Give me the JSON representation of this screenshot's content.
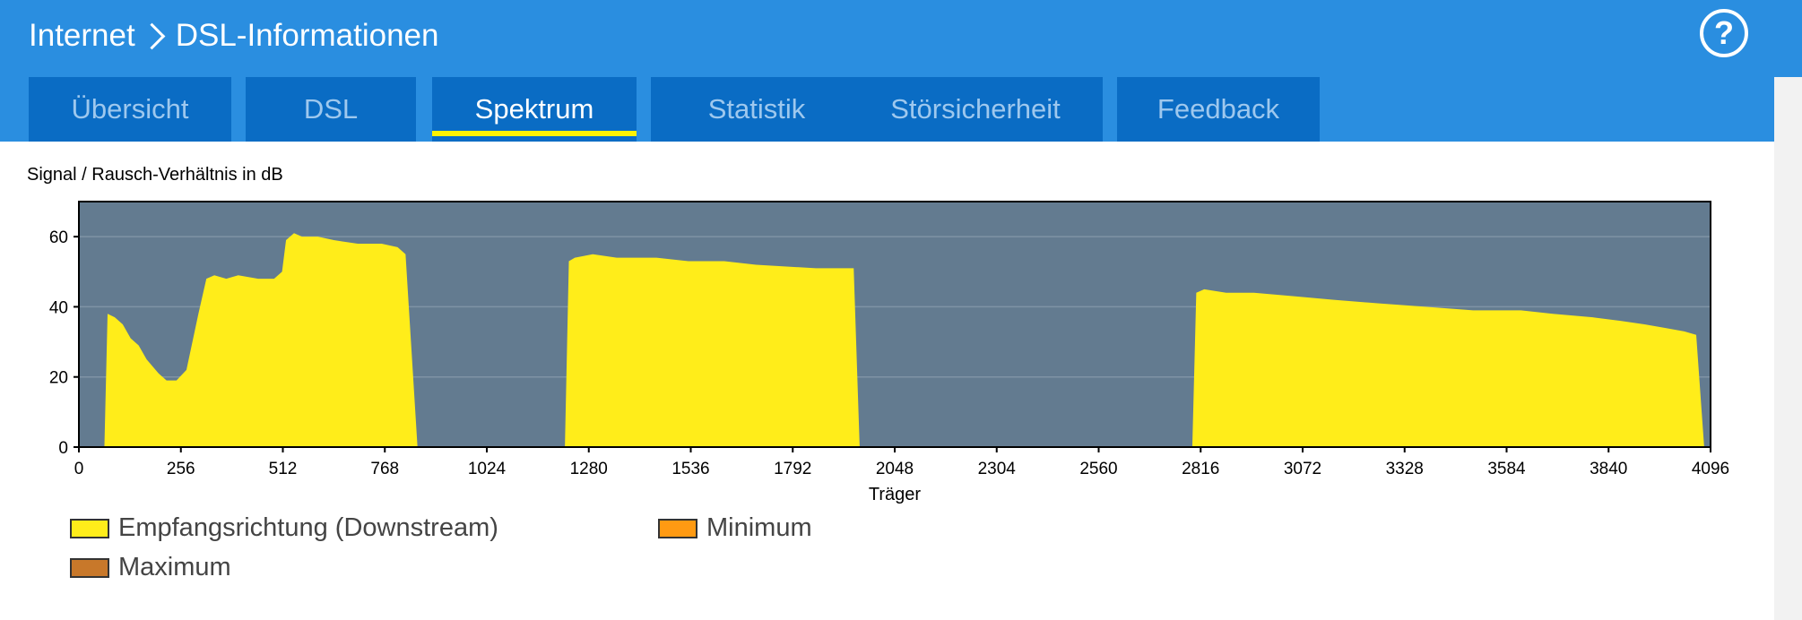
{
  "header": {
    "breadcrumb": [
      "Internet",
      "DSL-Informationen"
    ],
    "help_label": "?"
  },
  "tabs": [
    {
      "label": "Übersicht",
      "active": false
    },
    {
      "label": "DSL",
      "active": false
    },
    {
      "label": "Spektrum",
      "active": true
    },
    {
      "label": "Statistik",
      "active": false
    },
    {
      "label": "Störsicherheit",
      "active": false
    },
    {
      "label": "Feedback",
      "active": false
    }
  ],
  "chart_data": {
    "type": "area",
    "title": "Signal / Rausch-Verhältnis in dB",
    "xlabel": "Träger",
    "ylabel": "",
    "xlim": [
      0,
      4096
    ],
    "ylim": [
      0,
      70
    ],
    "xticks": [
      0,
      256,
      512,
      768,
      1024,
      1280,
      1536,
      1792,
      2048,
      2304,
      2560,
      2816,
      3072,
      3328,
      3584,
      3840,
      4096
    ],
    "yticks": [
      0,
      20,
      40,
      60
    ],
    "grid": true,
    "legend_position": "bottom",
    "colors": {
      "plot_background": "#637b90",
      "downstream": "#ffed1a",
      "minimum": "#ff9a12",
      "maximum": "#c8782a"
    },
    "series": [
      {
        "name": "Empfangsrichtung (Downstream)",
        "segments": [
          [
            [
              64,
              0
            ],
            [
              72,
              38
            ],
            [
              90,
              37
            ],
            [
              110,
              35
            ],
            [
              130,
              31
            ],
            [
              150,
              29
            ],
            [
              170,
              25
            ],
            [
              200,
              21
            ],
            [
              220,
              19
            ],
            [
              245,
              19
            ],
            [
              270,
              22
            ],
            [
              300,
              38
            ],
            [
              320,
              48
            ],
            [
              340,
              49
            ],
            [
              370,
              48
            ],
            [
              400,
              49
            ],
            [
              450,
              48
            ],
            [
              490,
              48
            ],
            [
              510,
              50
            ],
            [
              520,
              59
            ],
            [
              540,
              61
            ],
            [
              560,
              60
            ],
            [
              600,
              60
            ],
            [
              640,
              59
            ],
            [
              700,
              58
            ],
            [
              760,
              58
            ],
            [
              800,
              57
            ],
            [
              820,
              55
            ],
            [
              850,
              0
            ]
          ],
          [
            [
              1220,
              0
            ],
            [
              1230,
              53
            ],
            [
              1245,
              54
            ],
            [
              1290,
              55
            ],
            [
              1350,
              54
            ],
            [
              1450,
              54
            ],
            [
              1530,
              53
            ],
            [
              1620,
              53
            ],
            [
              1700,
              52
            ],
            [
              1850,
              51
            ],
            [
              1945,
              51
            ],
            [
              1960,
              0
            ]
          ],
          [
            [
              2795,
              0
            ],
            [
              2805,
              44
            ],
            [
              2825,
              45
            ],
            [
              2880,
              44
            ],
            [
              2950,
              44
            ],
            [
              3050,
              43
            ],
            [
              3150,
              42
            ],
            [
              3260,
              41
            ],
            [
              3380,
              40
            ],
            [
              3500,
              39
            ],
            [
              3620,
              39
            ],
            [
              3700,
              38
            ],
            [
              3800,
              37
            ],
            [
              3870,
              36
            ],
            [
              3930,
              35
            ],
            [
              3980,
              34
            ],
            [
              4030,
              33
            ],
            [
              4060,
              32
            ],
            [
              4080,
              0
            ]
          ]
        ]
      },
      {
        "name": "Minimum",
        "segments": []
      },
      {
        "name": "Maximum",
        "segments": []
      }
    ]
  }
}
